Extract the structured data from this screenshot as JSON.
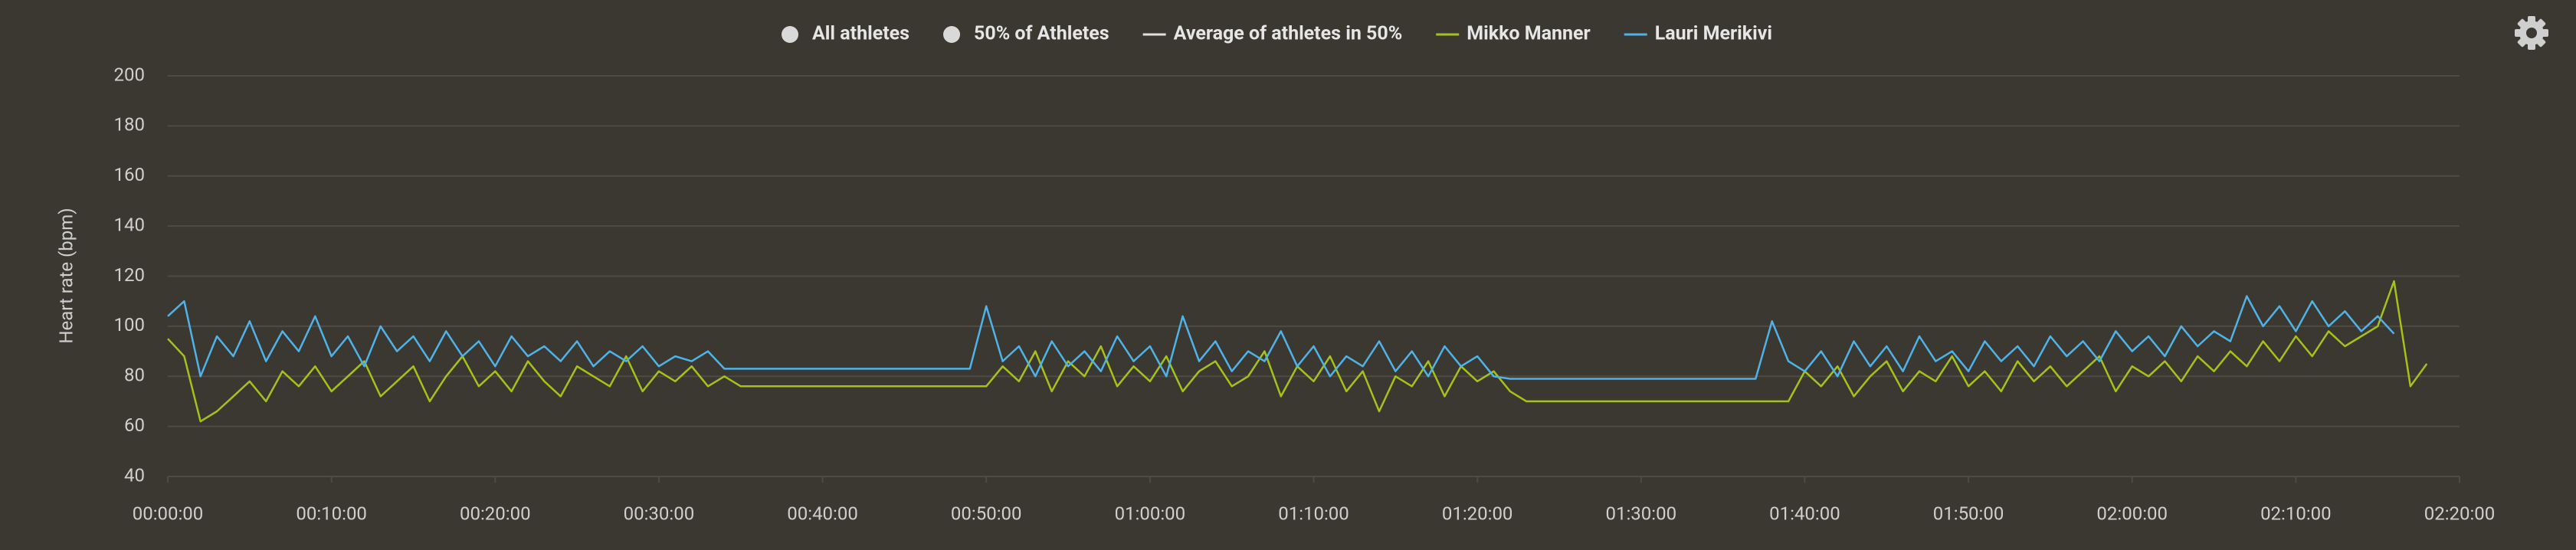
{
  "chart_data": {
    "type": "line",
    "y_label": "Heart rate (bpm)",
    "legend": [
      {
        "name": "All athletes",
        "color": "#d9d9d9",
        "symbol": "circle"
      },
      {
        "name": "50% of Athletes",
        "color": "#d9d9d9",
        "symbol": "circle"
      },
      {
        "name": "Average of athletes in 50%",
        "color": "#e0e0e0",
        "symbol": "line"
      }
    ],
    "x": [
      0,
      60,
      120,
      180,
      240,
      300,
      360,
      420,
      480,
      540,
      600,
      660,
      720,
      780,
      840,
      900,
      960,
      1020,
      1080,
      1140,
      1200,
      1260,
      1320,
      1380,
      1440,
      1500,
      1560,
      1620,
      1680,
      1740,
      1800,
      1860,
      1920,
      1980,
      2040,
      2100,
      2160,
      2220,
      2280,
      2340,
      2400,
      2460,
      2520,
      2580,
      2640,
      2700,
      2760,
      2820,
      2880,
      2940,
      3000,
      3060,
      3120,
      3180,
      3240,
      3300,
      3360,
      3420,
      3480,
      3540,
      3600,
      3660,
      3720,
      3780,
      3840,
      3900,
      3960,
      4020,
      4080,
      4140,
      4200,
      4260,
      4320,
      4380,
      4440,
      4500,
      4560,
      4620,
      4680,
      4740,
      4800,
      4860,
      4920,
      4980,
      5040,
      5100,
      5160,
      5220,
      5280,
      5340,
      5400,
      5460,
      5520,
      5580,
      5640,
      5700,
      5760,
      5820,
      5880,
      5940,
      6000,
      6060,
      6120,
      6180,
      6240,
      6300,
      6360,
      6420,
      6480,
      6540,
      6600,
      6660,
      6720,
      6780,
      6840,
      6900,
      6960,
      7020,
      7080,
      7140,
      7200,
      7260,
      7320,
      7380,
      7440,
      7500,
      7560,
      7620,
      7680,
      7740,
      7800,
      7860,
      7920,
      7980,
      8040,
      8100,
      8160,
      8220,
      8280
    ],
    "series": [
      {
        "name": "Mikko Manner",
        "color": "#a4c21a",
        "values": [
          95,
          88,
          62,
          66,
          72,
          78,
          70,
          82,
          76,
          84,
          74,
          80,
          86,
          72,
          78,
          84,
          70,
          80,
          88,
          76,
          82,
          74,
          86,
          78,
          72,
          84,
          80,
          76,
          88,
          74,
          82,
          78,
          84,
          76,
          80,
          76,
          76,
          76,
          76,
          76,
          76,
          76,
          76,
          76,
          76,
          76,
          76,
          76,
          76,
          76,
          76,
          84,
          78,
          90,
          74,
          86,
          80,
          92,
          76,
          84,
          78,
          88,
          74,
          82,
          86,
          76,
          80,
          90,
          72,
          84,
          78,
          88,
          74,
          82,
          66,
          80,
          76,
          86,
          72,
          84,
          78,
          82,
          74,
          70,
          70,
          70,
          70,
          70,
          70,
          70,
          70,
          70,
          70,
          70,
          70,
          70,
          70,
          70,
          70,
          70,
          82,
          76,
          84,
          72,
          80,
          86,
          74,
          82,
          78,
          88,
          76,
          82,
          74,
          86,
          78,
          84,
          76,
          82,
          88,
          74,
          84,
          80,
          86,
          78,
          88,
          82,
          90,
          84,
          94,
          86,
          96,
          88,
          98,
          92,
          96,
          100,
          118,
          76,
          85
        ]
      },
      {
        "name": "Lauri Merikivi",
        "color": "#4fb3e8",
        "values": [
          104,
          110,
          80,
          96,
          88,
          102,
          86,
          98,
          90,
          104,
          88,
          96,
          84,
          100,
          90,
          96,
          86,
          98,
          88,
          94,
          84,
          96,
          88,
          92,
          86,
          94,
          84,
          90,
          86,
          92,
          84,
          88,
          86,
          90,
          83,
          83,
          83,
          83,
          83,
          83,
          83,
          83,
          83,
          83,
          83,
          83,
          83,
          83,
          83,
          83,
          108,
          86,
          92,
          80,
          94,
          84,
          90,
          82,
          96,
          86,
          92,
          80,
          104,
          86,
          94,
          82,
          90,
          86,
          98,
          84,
          92,
          80,
          88,
          84,
          94,
          82,
          90,
          80,
          92,
          84,
          88,
          80,
          79,
          79,
          79,
          79,
          79,
          79,
          79,
          79,
          79,
          79,
          79,
          79,
          79,
          79,
          79,
          79,
          102,
          86,
          82,
          90,
          80,
          94,
          84,
          92,
          82,
          96,
          86,
          90,
          82,
          94,
          86,
          92,
          84,
          96,
          88,
          94,
          86,
          98,
          90,
          96,
          88,
          100,
          92,
          98,
          94,
          112,
          100,
          108,
          98,
          110,
          100,
          106,
          98,
          104,
          97,
          null,
          null
        ]
      }
    ],
    "xlim": [
      0,
      8400
    ],
    "xticks": [
      {
        "value": 0,
        "label": "00:00:00"
      },
      {
        "value": 600,
        "label": "00:10:00"
      },
      {
        "value": 1200,
        "label": "00:20:00"
      },
      {
        "value": 1800,
        "label": "00:30:00"
      },
      {
        "value": 2400,
        "label": "00:40:00"
      },
      {
        "value": 3000,
        "label": "00:50:00"
      },
      {
        "value": 3600,
        "label": "01:00:00"
      },
      {
        "value": 4200,
        "label": "01:10:00"
      },
      {
        "value": 4800,
        "label": "01:20:00"
      },
      {
        "value": 5400,
        "label": "01:30:00"
      },
      {
        "value": 6000,
        "label": "01:40:00"
      },
      {
        "value": 6600,
        "label": "01:50:00"
      },
      {
        "value": 7200,
        "label": "02:00:00"
      },
      {
        "value": 7800,
        "label": "02:10:00"
      },
      {
        "value": 8400,
        "label": "02:20:00"
      }
    ],
    "ylim": [
      40,
      200
    ],
    "yticks": [
      40,
      60,
      80,
      100,
      120,
      140,
      160,
      180,
      200
    ],
    "grid": true
  }
}
